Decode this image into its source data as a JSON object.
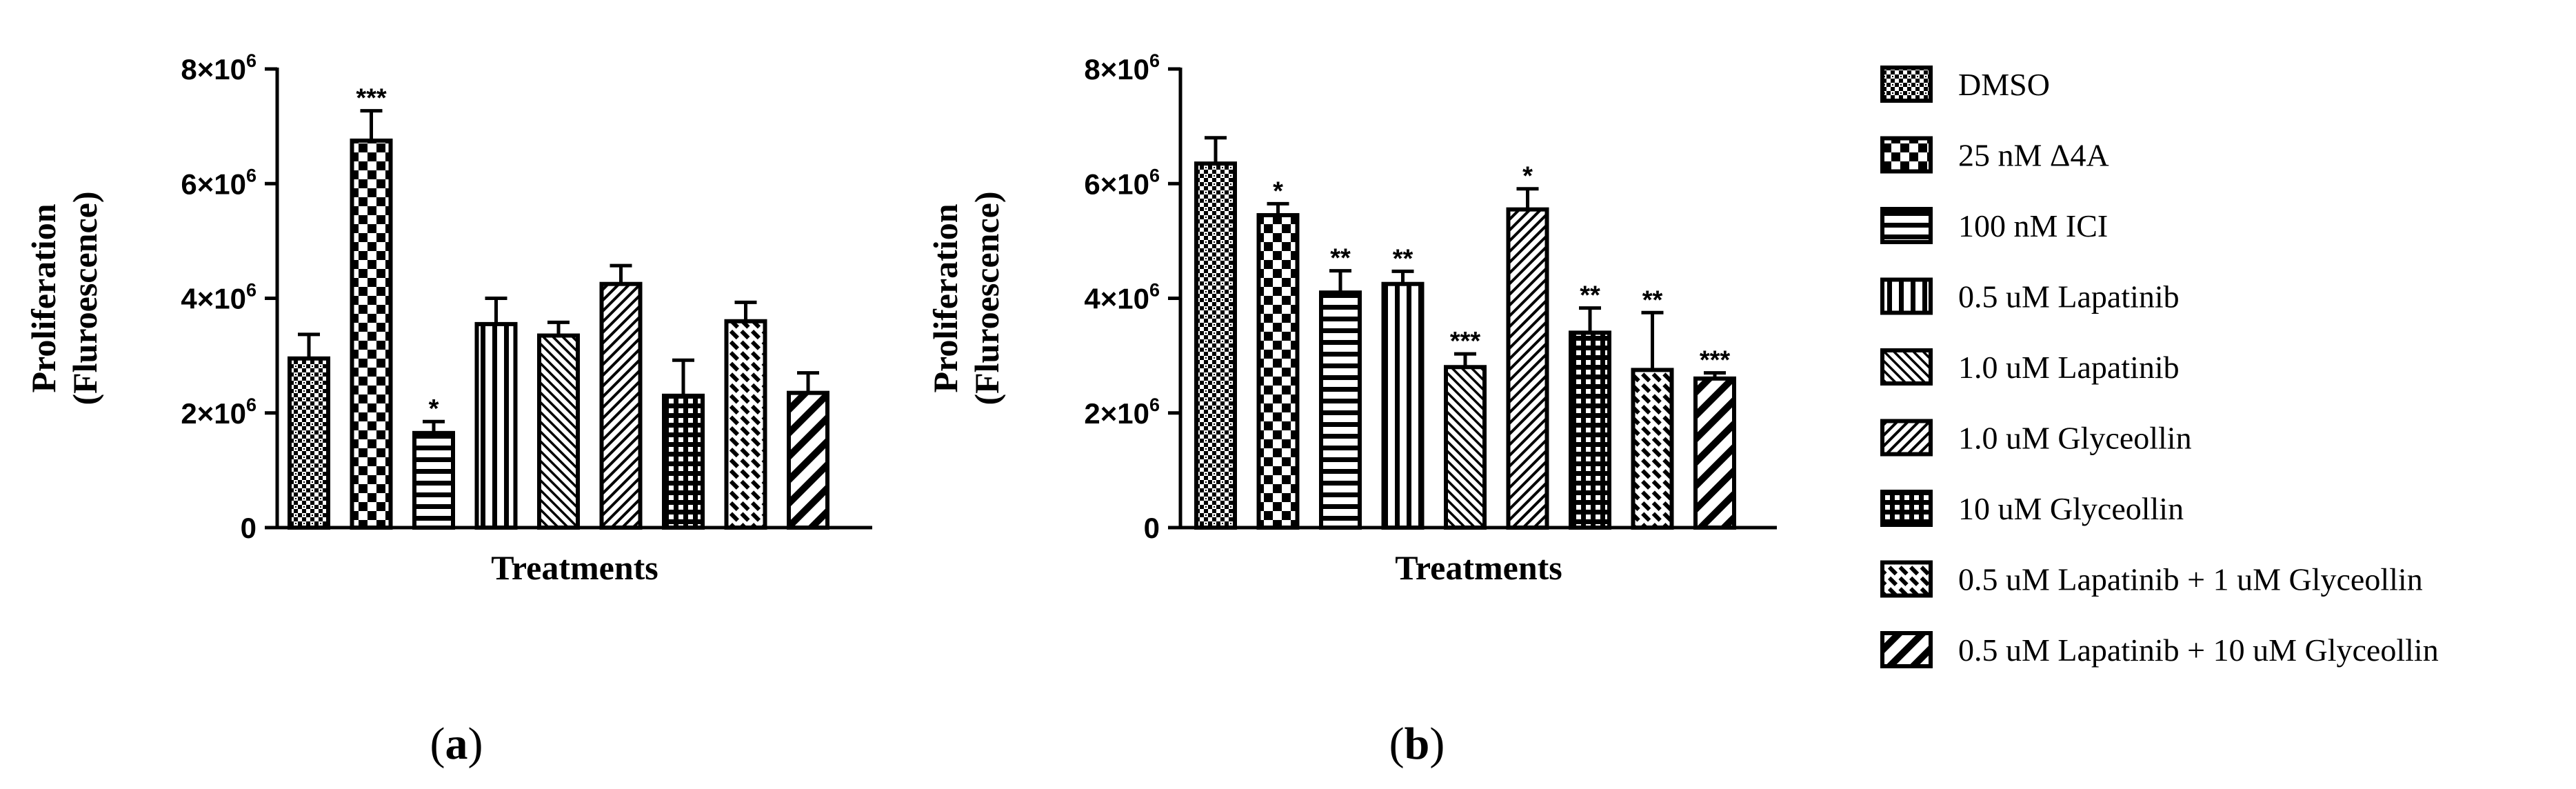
{
  "legend": [
    {
      "label": "DMSO",
      "pattern": "dots"
    },
    {
      "label": "25 nM Δ4A",
      "pattern": "checker"
    },
    {
      "label": "100 nM ICI",
      "pattern": "hlines"
    },
    {
      "label": "0.5 uM Lapatinib",
      "pattern": "vlines"
    },
    {
      "label": "1.0 uM Lapatinib",
      "pattern": "diag-fine"
    },
    {
      "label": "1.0 uM Glyceollin",
      "pattern": "diag-back"
    },
    {
      "label": "10 uM Glyceollin",
      "pattern": "grid"
    },
    {
      "label": "0.5 uM Lapatinib + 1 uM Glyceollin",
      "pattern": "dashed-diag"
    },
    {
      "label": "0.5 uM Lapatinib + 10 uM Glyceollin",
      "pattern": "diag-thick"
    }
  ],
  "chart_data": [
    {
      "type": "bar",
      "panel": "(a)",
      "panel_letter": "a",
      "xlabel": "Treatments",
      "ylabel": [
        "Proliferation",
        "(Fluroescence)"
      ],
      "ylim": [
        0,
        8000000
      ],
      "yticks": [
        {
          "value": 0,
          "mantissa": "0",
          "exp": ""
        },
        {
          "value": 2000000,
          "mantissa": "2×10",
          "exp": "6"
        },
        {
          "value": 4000000,
          "mantissa": "4×10",
          "exp": "6"
        },
        {
          "value": 6000000,
          "mantissa": "6×10",
          "exp": "6"
        },
        {
          "value": 8000000,
          "mantissa": "8×10",
          "exp": "6"
        }
      ],
      "values": [
        2950000,
        6750000,
        1650000,
        3550000,
        3350000,
        4250000,
        2300000,
        3600000,
        2350000
      ],
      "errors": [
        420000,
        520000,
        200000,
        450000,
        230000,
        320000,
        620000,
        330000,
        350000
      ],
      "significance": [
        "",
        "***",
        "*",
        "",
        "",
        "",
        "",
        "",
        ""
      ]
    },
    {
      "type": "bar",
      "panel": "(b)",
      "panel_letter": "b",
      "xlabel": "Treatments",
      "ylabel": [
        "Proliferation",
        "(Fluroescence)"
      ],
      "ylim": [
        0,
        8000000
      ],
      "yticks": [
        {
          "value": 0,
          "mantissa": "0",
          "exp": ""
        },
        {
          "value": 2000000,
          "mantissa": "2×10",
          "exp": "6"
        },
        {
          "value": 4000000,
          "mantissa": "4×10",
          "exp": "6"
        },
        {
          "value": 6000000,
          "mantissa": "6×10",
          "exp": "6"
        },
        {
          "value": 8000000,
          "mantissa": "8×10",
          "exp": "6"
        }
      ],
      "values": [
        6350000,
        5450000,
        4100000,
        4250000,
        2800000,
        5550000,
        3400000,
        2750000,
        2600000
      ],
      "errors": [
        450000,
        200000,
        380000,
        220000,
        230000,
        360000,
        430000,
        1000000,
        100000
      ],
      "significance": [
        "",
        "*",
        "**",
        "**",
        "***",
        "*",
        "**",
        "**",
        "***"
      ]
    }
  ]
}
